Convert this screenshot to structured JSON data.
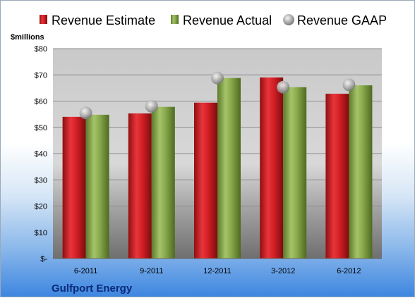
{
  "chart_data": {
    "type": "bar",
    "unit_label": "$millions",
    "company": "Gulfport Energy",
    "categories": [
      "6-2011",
      "9-2011",
      "12-2011",
      "3-2012",
      "6-2012"
    ],
    "series": [
      {
        "name": "Revenue Estimate",
        "kind": "bar",
        "color": "#cc1e23",
        "values": [
          54,
          55.3,
          59.4,
          69,
          62.8
        ]
      },
      {
        "name": "Revenue Actual",
        "kind": "bar",
        "color": "#8aa84a",
        "values": [
          54.8,
          57.8,
          68.8,
          65.3,
          66
        ]
      },
      {
        "name": "Revenue GAAP",
        "kind": "marker",
        "color": "#b8b8b8",
        "values": [
          55.5,
          58,
          68.8,
          65.3,
          66.2
        ]
      }
    ],
    "yticks": [
      0,
      10,
      20,
      30,
      40,
      50,
      60,
      70,
      80
    ],
    "ytick_labels": [
      "$-",
      "$10",
      "$20",
      "$30",
      "$40",
      "$50",
      "$60",
      "$70",
      "$80"
    ],
    "ylim": [
      0,
      80
    ],
    "grid": true,
    "legend_position": "top"
  }
}
